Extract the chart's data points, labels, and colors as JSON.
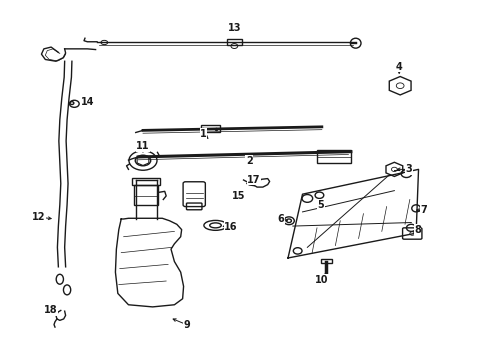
{
  "bg_color": "#ffffff",
  "line_color": "#1a1a1a",
  "figsize": [
    4.89,
    3.6
  ],
  "dpi": 100,
  "labels": [
    [
      1,
      0.415,
      0.63,
      0.43,
      0.61
    ],
    [
      2,
      0.51,
      0.555,
      0.51,
      0.537
    ],
    [
      3,
      0.84,
      0.53,
      0.808,
      0.53
    ],
    [
      4,
      0.82,
      0.82,
      0.82,
      0.79
    ],
    [
      5,
      0.658,
      0.43,
      0.658,
      0.43
    ],
    [
      6,
      0.575,
      0.39,
      0.596,
      0.383
    ],
    [
      7,
      0.87,
      0.415,
      0.848,
      0.415
    ],
    [
      8,
      0.858,
      0.36,
      0.843,
      0.348
    ],
    [
      9,
      0.38,
      0.092,
      0.345,
      0.112
    ],
    [
      10,
      0.66,
      0.218,
      0.672,
      0.238
    ],
    [
      11,
      0.29,
      0.595,
      0.29,
      0.568
    ],
    [
      12,
      0.075,
      0.395,
      0.108,
      0.39
    ],
    [
      13,
      0.48,
      0.93,
      0.48,
      0.905
    ],
    [
      14,
      0.175,
      0.72,
      0.155,
      0.715
    ],
    [
      15,
      0.488,
      0.455,
      0.465,
      0.452
    ],
    [
      16,
      0.472,
      0.368,
      0.448,
      0.37
    ],
    [
      17,
      0.52,
      0.5,
      0.538,
      0.488
    ],
    [
      18,
      0.1,
      0.132,
      0.118,
      0.118
    ]
  ]
}
